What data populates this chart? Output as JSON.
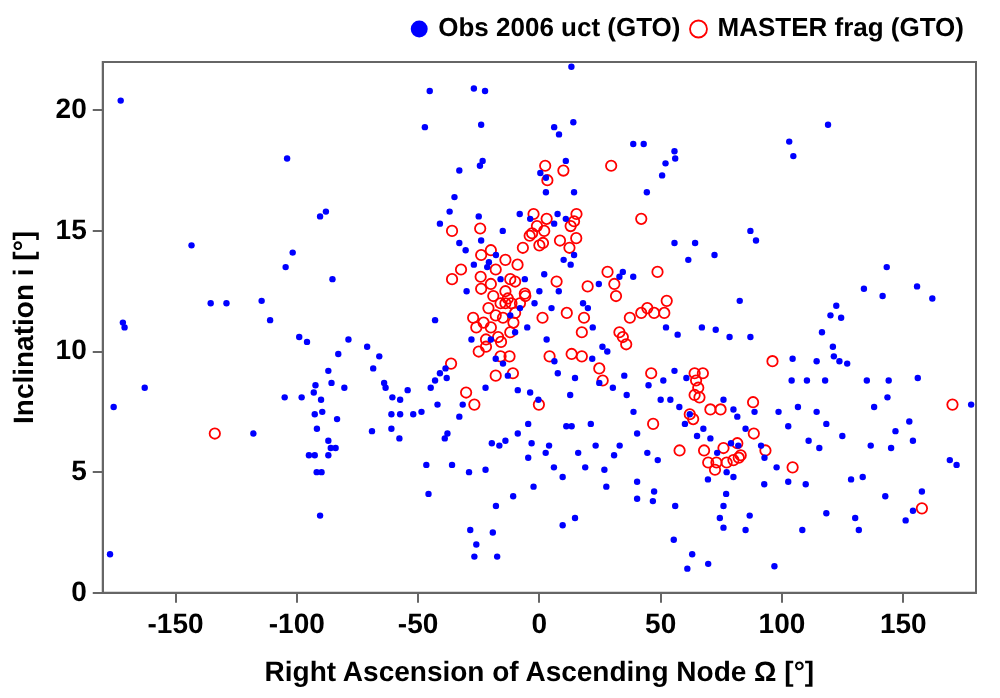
{
  "chart_data": {
    "type": "scatter",
    "xlabel": "Right Ascension of Ascending Node Ω [°]",
    "ylabel": "Inclination i [°]",
    "xlim": [
      -180,
      180
    ],
    "xticks": [
      -150,
      -100,
      -50,
      0,
      50,
      100,
      150
    ],
    "ylim": [
      0,
      22
    ],
    "yticks": [
      0,
      5,
      10,
      15,
      20
    ],
    "grid": false,
    "legend": "top right",
    "series": [
      {
        "name": "Obs 2006 uct (GTO)",
        "color": "#0000ff",
        "marker": "circle",
        "x": [
          -172.6,
          -171.7,
          -171,
          -143.4,
          -135.5,
          -129,
          -114.5,
          -111,
          -104,
          -90.4,
          -88,
          -101.7,
          -104.6,
          -85.3,
          -99,
          -95.8,
          -78.7,
          -71,
          -47.2,
          -45.2,
          -41,
          -37,
          -35,
          -43,
          -33,
          -23.4,
          -24.5,
          -24,
          -27,
          -22.4,
          -33,
          -30.4,
          -24,
          -25,
          -27,
          -21.5,
          -175.5,
          -177,
          -162.7,
          -117.9,
          -105,
          -98,
          -92.3,
          -93,
          -90,
          -89.5,
          -92.6,
          -91.7,
          -87,
          -85.7,
          -83.4,
          -82.9,
          -80.4,
          -87,
          -86,
          -84,
          -95,
          -92.6,
          -87,
          -91.8,
          -89.8,
          -90.4,
          -68.5,
          -69,
          -64,
          -63.4,
          -66,
          -60.6,
          -61,
          -57.4,
          -57.4,
          -54.3,
          -52,
          -48.6,
          -61,
          -57.7,
          -46.6,
          -45.7,
          -43,
          -44.8,
          -42,
          -41,
          -38.7,
          -38.2,
          -39,
          -37.9,
          -36,
          -29,
          -28.5,
          -26,
          -26.8,
          -33,
          -31.6,
          -22.2,
          -22.2,
          13.2,
          14,
          6.1,
          8.1,
          10.9,
          2.7,
          0.4,
          14.3,
          2.7,
          38.7,
          43,
          55.7,
          52,
          56,
          50.6,
          44.3,
          103,
          104.7,
          119,
          87,
          89.3,
          55.7,
          64.2,
          61.4,
          72.2,
          82.6,
          133.8,
          141.5,
          143.2,
          155.7,
          162,
          38.7,
          34.4,
          122.4,
          120,
          124.4,
          116.5,
          121,
          67,
          72.7,
          78.4,
          87,
          52.2,
          57,
          7.5,
          10.9,
          6.1,
          -15.1,
          -8.1,
          -3.8,
          -20.8,
          -17.9,
          14.3,
          12.9,
          24.5,
          33,
          -18,
          -13,
          -8.9,
          -3.8,
          -0.4,
          6.2,
          7.6,
          12.7,
          14.7,
          21.8,
          24.7,
          21.2,
          13.3,
          11.1,
          30.3,
          36,
          38.8,
          40.3,
          44.5,
          48.8,
          33.1,
          30.8,
          9.6,
          6,
          2.6,
          -4.6,
          -8.9,
          -14,
          -16.5,
          -19.6,
          -2.4,
          -10.8,
          -17.9,
          -17.4,
          -19.2,
          9.6,
          14.7,
          27.6,
          40.3,
          40.3,
          47.3,
          46.8,
          56,
          55.4,
          63,
          61,
          69.6,
          75.9,
          74.4,
          75.9,
          85,
          86.7,
          77,
          96.9,
          92.7,
          97.8,
          102.6,
          109.8,
          108.4,
          118.3,
          130.2,
          131.7,
          128.5,
          133.3,
          142.6,
          151,
          154,
          157.7,
          169.2,
          172,
          178,
          104,
          110.3,
          117.8,
          126.9,
          123.7,
          135,
          144,
          156,
          143.5,
          138,
          146.8,
          136.6,
          145,
          154,
          152.5,
          124.9,
          118.3,
          114.3,
          106.6,
          102.6,
          111,
          115.4,
          98.6,
          88.7,
          81.6,
          85,
          79,
          73.3,
          70.5,
          67.6,
          62,
          57.7,
          54,
          51.1,
          55.7,
          60.6,
          75.9,
          80,
          82,
          91.4,
          92.8,
          77.2,
          80,
          69.5,
          121.4,
          114.3,
          104.4,
          23.2,
          16,
          18.9,
          26.8,
          -3.2,
          -4.6,
          4,
          -5,
          -2,
          3,
          -12,
          -10,
          -6,
          0,
          5,
          8,
          -15,
          -20,
          18,
          22,
          26,
          28,
          35,
          45,
          50,
          60,
          65,
          -28,
          -30,
          -16,
          -8,
          2,
          10,
          20
        ],
        "values": [
          20.4,
          11.2,
          11,
          14.4,
          12,
          12,
          12.1,
          11.3,
          18,
          15.6,
          15.8,
          14.1,
          13.5,
          13,
          10.6,
          10.4,
          10.5,
          10.2,
          19.3,
          20.8,
          15.3,
          15.8,
          16.4,
          11.3,
          17.5,
          17.9,
          17.7,
          19.4,
          20.9,
          20.8,
          14.5,
          14.2,
          14.6,
          15.6,
          13.6,
          13.5,
          7.7,
          1.6,
          8.5,
          6.6,
          8.1,
          8.1,
          8.6,
          8.3,
          8,
          7.5,
          7.4,
          6.8,
          9.2,
          8.7,
          7.2,
          9.9,
          8.5,
          6.3,
          6,
          6,
          5.7,
          5.7,
          5.7,
          5,
          5,
          3.2,
          9.3,
          6.7,
          8.7,
          8.5,
          9.8,
          8.1,
          7.4,
          7.4,
          8,
          8.4,
          7.4,
          7.5,
          6.8,
          6.4,
          5.3,
          4.1,
          8.8,
          8.5,
          7.8,
          9.1,
          9.3,
          8.9,
          6.4,
          6.6,
          5.3,
          5,
          2.6,
          2,
          1.5,
          7.3,
          7.8,
          8.5,
          5.1,
          21.8,
          19.5,
          19.3,
          19,
          17.9,
          17.2,
          17.4,
          16.6,
          16.6,
          18.6,
          18.6,
          18.3,
          17.8,
          18,
          17.3,
          16.6,
          18.7,
          18.1,
          19.4,
          15,
          14.6,
          14.5,
          14.5,
          13.8,
          14,
          12.1,
          12.6,
          12.3,
          13.5,
          12.7,
          12.2,
          13.1,
          13.3,
          11.9,
          11.5,
          11.4,
          10.8,
          10.2,
          11,
          10.9,
          10.6,
          10.6,
          11,
          10.7,
          15.7,
          15.5,
          15.3,
          15,
          15.7,
          15.5,
          13.7,
          14,
          14,
          13.6,
          12.8,
          13.1,
          9.7,
          9,
          8.4,
          8.3,
          8,
          9.6,
          9.1,
          8.2,
          8.9,
          9.7,
          8.7,
          7,
          6.9,
          6.9,
          8.5,
          8.2,
          7.5,
          6.6,
          5.8,
          5.5,
          6.1,
          5.7,
          4.8,
          5.2,
          5.8,
          7,
          6.6,
          6.3,
          6.1,
          6.2,
          4.4,
          4,
          3.6,
          1.5,
          2.5,
          2.8,
          3.1,
          4.4,
          4.6,
          3.9,
          4.2,
          3.8,
          3.6,
          2.2,
          1.6,
          1,
          1.2,
          2.7,
          3.1,
          3.6,
          2.6,
          3.2,
          4.1,
          1.1,
          4.5,
          5.2,
          4.6,
          4.5,
          2.6,
          3.3,
          3.1,
          2.6,
          4.7,
          4.8,
          4,
          3,
          3.4,
          4.2,
          5.5,
          5.3,
          7.8,
          8.8,
          8.8,
          8.8,
          9.5,
          9.6,
          8.8,
          8.8,
          8.9,
          8.1,
          7.7,
          6.7,
          6.1,
          6,
          6.3,
          7.1,
          6.5,
          7,
          7.5,
          7.7,
          6.9,
          6.3,
          6,
          7.5,
          7.5,
          7.3,
          6.8,
          6.2,
          5.8,
          6.4,
          6.8,
          7.4,
          7.7,
          8,
          8.8,
          9.2,
          8.9,
          8,
          7.6,
          6.1,
          6.1,
          5.6,
          5,
          4.8,
          4.7,
          9.8,
          9.6,
          9.7,
          6.1,
          5.8,
          5.2,
          5.1,
          6.2,
          5.6,
          6.1,
          11,
          12,
          10.5,
          11.5,
          10.8,
          13,
          12.5,
          11.8,
          12.5,
          9.5,
          10.5,
          12,
          11,
          10.2,
          10,
          9,
          8.6,
          8,
          7,
          6.5,
          10.5,
          12.5,
          13,
          11.8,
          13.2,
          13.8,
          11.8
        ]
      },
      {
        "name": "MASTER frag (GTO)",
        "color": "#ff0000",
        "marker": "circle",
        "x": [
          -133.8,
          -30.2,
          -26.8,
          -36.4,
          -36,
          -24.4,
          -36,
          -32.3,
          -24.2,
          -27.3,
          2.4,
          9.9,
          29.6,
          3.3,
          42,
          15.3,
          48.7,
          31.6,
          28.1,
          30.9,
          19.9,
          7.1,
          11.3,
          18.4,
          17.5,
          1.3,
          -5.8,
          -10,
          -11.5,
          -15.8,
          -10.7,
          47.3,
          44.5,
          42,
          37.3,
          33,
          34.4,
          35.8,
          51.5,
          52.5,
          -2.4,
          -6.8,
          -4,
          -1,
          1.5,
          3,
          -3,
          0,
          2,
          12.9,
          14.3,
          15.2,
          12.4,
          8.5,
          -12.3,
          -10.9,
          -18,
          -0.2,
          4.2,
          13.3,
          17.5,
          24.7,
          26.1,
          46.9,
          46.1,
          64,
          64.6,
          65.5,
          66,
          64,
          67.4,
          62,
          63.4,
          70.5,
          74.7,
          88.1,
          88.4,
          93.2,
          96.1,
          67.9,
          73,
          77.2,
          80,
          72.4,
          69.6,
          75.9,
          81.6,
          83,
          82.2,
          57.8,
          104.4,
          157.7,
          170.3,
          -25,
          -22,
          -20,
          -18,
          -16,
          -14,
          -12,
          -23,
          -21,
          -19,
          -17,
          -15,
          -13,
          -24,
          -20,
          -16,
          -12,
          -22,
          -18,
          -14,
          -26,
          -10,
          -8,
          -6,
          -24,
          -20,
          -14,
          -9
        ],
        "values": [
          6.6,
          8.3,
          7.8,
          9.5,
          15,
          15.1,
          13,
          13.4,
          13.1,
          11.4,
          17.7,
          17.5,
          17.7,
          17.1,
          15.5,
          15.7,
          13.3,
          12.3,
          13.3,
          12.8,
          12.7,
          12.9,
          11.6,
          11.4,
          10.8,
          11.4,
          12.3,
          12.9,
          12,
          10.4,
          11.2,
          11.6,
          11.8,
          11.6,
          11.4,
          10.8,
          10.6,
          10.3,
          11.6,
          12.1,
          15.7,
          14.3,
          14.8,
          15.2,
          14.5,
          15.5,
          14.9,
          14.4,
          15,
          15.2,
          15.4,
          14.7,
          14.3,
          14.6,
          9.8,
          9.1,
          9,
          7.8,
          9.8,
          9.9,
          9.8,
          9.3,
          8.8,
          7,
          9.1,
          9.1,
          8.8,
          8.5,
          8.1,
          8.2,
          9.1,
          7.4,
          7.2,
          7.6,
          7.6,
          7.9,
          6.6,
          5.9,
          9.6,
          5.9,
          5.4,
          5.4,
          5.5,
          5.1,
          5.4,
          6,
          6.2,
          5.7,
          5.6,
          5.9,
          5.2,
          3.5,
          7.8,
          10,
          10.5,
          11,
          11.5,
          12,
          12.5,
          13,
          11.2,
          11.8,
          12.3,
          10.6,
          11.4,
          12.2,
          12.6,
          12.8,
          9.8,
          10.8,
          10.2,
          13.4,
          12,
          11,
          11.6,
          12,
          12.4,
          14,
          14.2,
          13.8,
          13.6
        ]
      }
    ]
  }
}
